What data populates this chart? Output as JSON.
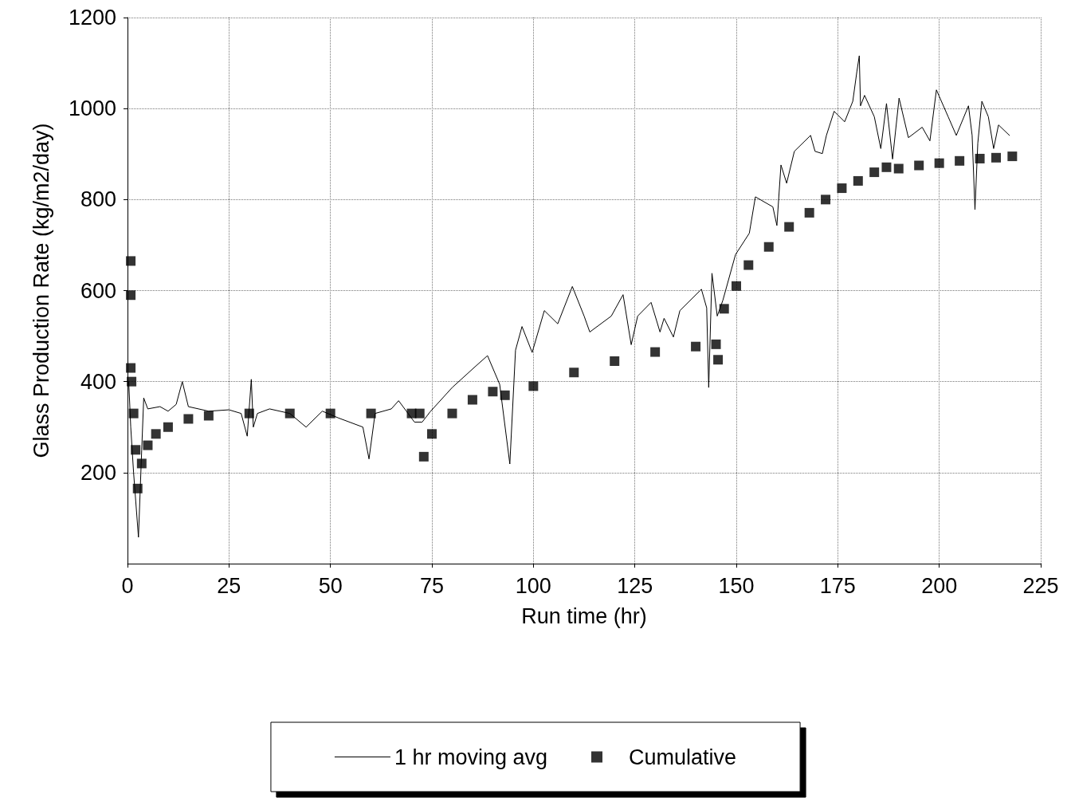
{
  "chart_data": {
    "type": "line",
    "xlabel": "Run time (hr)",
    "ylabel": "Glass Production Rate (kg/m2/day)",
    "xlim": [
      0,
      225
    ],
    "xticks": [
      0,
      25,
      50,
      75,
      100,
      125,
      150,
      175,
      200,
      225
    ],
    "ylim": [
      0,
      1200
    ],
    "yticks": [
      200,
      400,
      600,
      800,
      1000,
      1200
    ],
    "grid": true,
    "legend": "bottom",
    "series": [
      {
        "name": "1 hr moving avg",
        "type": "line",
        "color": "#000000",
        "marker": "none",
        "x": [
          0.3,
          0.8,
          1.5,
          2.7,
          3.5,
          4,
          5,
          8,
          10,
          12,
          13.5,
          15,
          20,
          25,
          28,
          29.5,
          30.5,
          31,
          32,
          35,
          40,
          44,
          48,
          52,
          58,
          59.5,
          61,
          65,
          66.8,
          70.7,
          72.6,
          74.6,
          80,
          85.8,
          88.7,
          91.7,
          94.2,
          95.6,
          97.2,
          99.7,
          102.7,
          106,
          109.6,
          112.5,
          113.9,
          119.2,
          122.1,
          124.1,
          125.7,
          129,
          131.2,
          132.2,
          134.5,
          136.1,
          141.4,
          142.7,
          143.2,
          144,
          145.3,
          146.7,
          149.8,
          153.2,
          154.7,
          159,
          160,
          161,
          162.4,
          164.3,
          168.3,
          169.4,
          171.2,
          172.2,
          174.1,
          176.7,
          178.7,
          179.7,
          180.3,
          180.6,
          181.6,
          184,
          185.6,
          187,
          188.5,
          190.1,
          192.4,
          195.8,
          197.7,
          199.3,
          202.2,
          204.2,
          207.2,
          208.1,
          208.8,
          209.5,
          210.5,
          212.1,
          213.4,
          214.6,
          217.3
        ],
        "values": [
          400,
          300,
          200,
          58,
          250,
          364,
          340,
          345,
          335,
          350,
          400,
          345,
          335,
          338,
          330,
          280,
          405,
          300,
          330,
          340,
          330,
          300,
          335,
          320,
          300,
          230,
          330,
          340,
          358,
          311,
          311,
          334,
          387,
          434,
          457,
          394,
          219,
          469,
          521,
          464,
          556,
          527,
          609,
          544,
          509,
          544,
          591,
          481,
          544,
          574,
          509,
          539,
          498,
          556,
          603,
          562,
          387,
          638,
          544,
          579,
          679,
          726,
          806,
          784,
          743,
          876,
          836,
          906,
          941,
          906,
          901,
          941,
          994,
          971,
          1016,
          1081,
          1116,
          1006,
          1029,
          982,
          912,
          1011,
          889,
          1023,
          936,
          959,
          929,
          1041,
          982,
          941,
          1006,
          941,
          778,
          924,
          1016,
          982,
          912,
          964,
          941
        ]
      },
      {
        "name": "Cumulative",
        "type": "scatter",
        "color": "#000000",
        "marker": "square",
        "x": [
          0.8,
          0.8,
          0.8,
          1,
          1.5,
          2,
          2.5,
          3.5,
          5,
          7,
          10,
          15,
          20,
          30,
          40,
          50,
          60,
          70,
          72,
          73,
          75,
          80,
          85,
          90,
          93,
          100,
          110,
          120,
          130,
          140,
          145,
          145.5,
          147,
          150,
          153,
          158,
          163,
          168,
          172,
          176,
          180,
          184,
          187,
          190,
          195,
          200,
          205,
          210,
          214,
          218
        ],
        "values": [
          665,
          590,
          430,
          400,
          330,
          250,
          165,
          220,
          260,
          285,
          300,
          318,
          325,
          330,
          330,
          330,
          330,
          330,
          330,
          235,
          285,
          330,
          360,
          378,
          370,
          390,
          420,
          445,
          465,
          477,
          482,
          448,
          560,
          610,
          656,
          696,
          740,
          771,
          800,
          825,
          841,
          860,
          871,
          868,
          875,
          880,
          885,
          890,
          892,
          895
        ]
      }
    ]
  }
}
